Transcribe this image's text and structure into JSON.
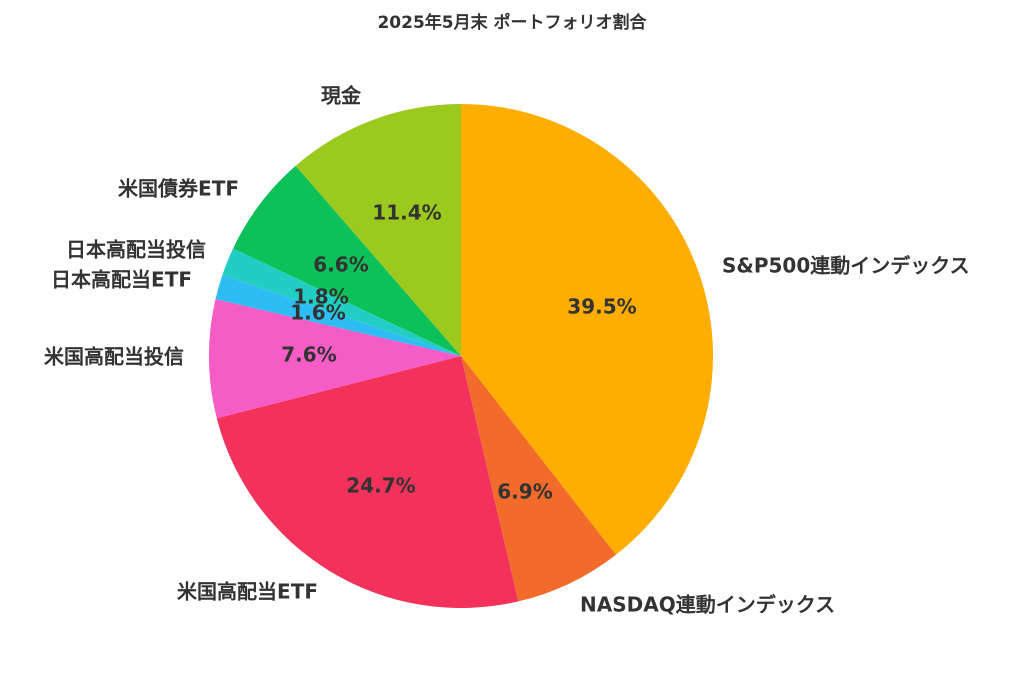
{
  "chart_data": {
    "type": "pie",
    "title": "2025年5月末 ポートフォリオ割合",
    "slices": [
      {
        "label": "S&P500連動インデックス",
        "value": 39.5,
        "value_label": "39.5%",
        "color": "#FFAE00"
      },
      {
        "label": "NASDAQ連動インデックス",
        "value": 6.9,
        "value_label": "6.9%",
        "color": "#F26B2A"
      },
      {
        "label": "米国高配当ETF",
        "value": 24.7,
        "value_label": "24.7%",
        "color": "#F2325A"
      },
      {
        "label": "米国高配当投信",
        "value": 7.6,
        "value_label": "7.6%",
        "color": "#F55CC6"
      },
      {
        "label": "日本高配当ETF",
        "value": 1.6,
        "value_label": "1.6%",
        "color": "#2EBDF2"
      },
      {
        "label": "日本高配当投信",
        "value": 1.8,
        "value_label": "1.8%",
        "color": "#22CEC4"
      },
      {
        "label": "米国債券ETF",
        "value": 6.6,
        "value_label": "6.6%",
        "color": "#0CC159"
      },
      {
        "label": "現金",
        "value": 11.4,
        "value_label": "11.4%",
        "color": "#9BC91E"
      }
    ],
    "start_angle": "top",
    "direction": "clockwise",
    "legend": "none"
  }
}
